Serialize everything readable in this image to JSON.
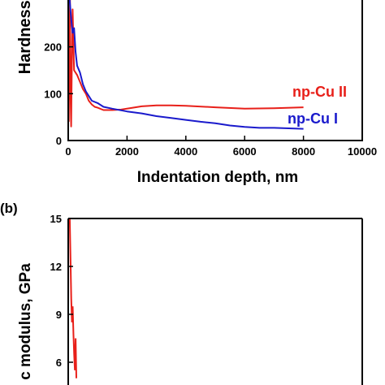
{
  "chart_data": [
    {
      "type": "line",
      "panel_label": "",
      "xlabel": "Indentation depth, nm",
      "ylabel": "Hardness,",
      "xlim": [
        0,
        10000
      ],
      "ylim": [
        0,
        300
      ],
      "x_ticks": [
        0,
        2000,
        4000,
        6000,
        8000,
        10000
      ],
      "x_tick_labels": [
        "0",
        "2000",
        "4000",
        "6000",
        "8000",
        "10000"
      ],
      "y_ticks": [
        0,
        100,
        200
      ],
      "y_tick_labels": [
        "0",
        "100",
        "200"
      ],
      "grid": false,
      "legend": "right (text labels next to curves)",
      "series": [
        {
          "name": "np-Cu II",
          "color": "#e8201a",
          "x": [
            20,
            40,
            60,
            80,
            100,
            120,
            150,
            200,
            300,
            400,
            500,
            600,
            700,
            800,
            900,
            1000,
            1200,
            1500,
            1800,
            2000,
            2500,
            3000,
            3500,
            4000,
            5000,
            6000,
            7000,
            8000
          ],
          "y": [
            40,
            200,
            320,
            90,
            30,
            140,
            280,
            150,
            140,
            125,
            110,
            100,
            85,
            77,
            72,
            70,
            65,
            65,
            66,
            68,
            73,
            75,
            75,
            74,
            71,
            68,
            69,
            71
          ]
        },
        {
          "name": "np-Cu I",
          "color": "#1a1acc",
          "x": [
            50,
            100,
            150,
            200,
            250,
            300,
            400,
            500,
            600,
            700,
            800,
            1000,
            1200,
            1500,
            2000,
            2500,
            3000,
            3500,
            4000,
            4500,
            5000,
            5500,
            6000,
            6500,
            7000,
            7500,
            8000
          ],
          "y": [
            300,
            260,
            230,
            240,
            190,
            160,
            145,
            120,
            105,
            95,
            85,
            80,
            72,
            68,
            62,
            58,
            52,
            48,
            44,
            40,
            37,
            32,
            29,
            27,
            27,
            26,
            25
          ]
        }
      ]
    },
    {
      "type": "line",
      "panel_label": "(b)",
      "xlabel": "",
      "ylabel": "c modulus, GPa",
      "ylim": [
        4.5,
        15
      ],
      "y_ticks": [
        6,
        9,
        12,
        15
      ],
      "y_tick_labels": [
        "6",
        "9",
        "12",
        "15"
      ],
      "grid": false,
      "series": [
        {
          "color": "#e8201a",
          "x": [
            10,
            20,
            30,
            40,
            50,
            60,
            70,
            80,
            90,
            100
          ],
          "y": [
            15,
            12.5,
            10,
            8.5,
            9.5,
            7.8,
            6.5,
            5.5,
            7.5,
            5.0
          ]
        }
      ]
    }
  ]
}
